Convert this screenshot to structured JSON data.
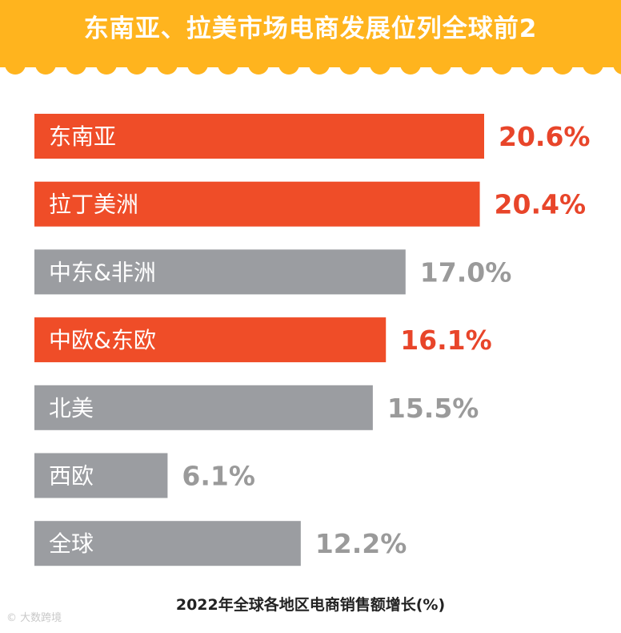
{
  "header": {
    "title": "东南亚、拉美市场电商发展位列全球前2"
  },
  "chart_data": {
    "type": "bar",
    "orientation": "horizontal",
    "title": "东南亚、拉美市场电商发展位列全球前2",
    "xlabel": "2022年全球各地区电商销售额增长(%)",
    "ylabel": "",
    "xlim": [
      0,
      20.6
    ],
    "grid": false,
    "legend": "none",
    "unit": "%",
    "categories": [
      "东南亚",
      "拉丁美洲",
      "中东&非洲",
      "中欧&东欧",
      "北美",
      "西欧",
      "全球"
    ],
    "values": [
      20.6,
      20.4,
      17.0,
      16.1,
      15.5,
      6.1,
      12.2
    ],
    "value_labels": [
      "20.6%",
      "20.4%",
      "17.0%",
      "16.1%",
      "15.5%",
      "6.1%",
      "12.2%"
    ],
    "highlight": [
      true,
      true,
      false,
      true,
      false,
      false,
      false
    ],
    "colors": {
      "highlight_bar": "#ef4d28",
      "normal_bar": "#9b9da1",
      "highlight_text": "#e8452a",
      "normal_text": "#9a9a9a",
      "banner": "#ffb41e"
    }
  },
  "footer": {
    "caption": "2022年全球各地区电商销售额增长(%)",
    "watermark": "大数跨境"
  }
}
